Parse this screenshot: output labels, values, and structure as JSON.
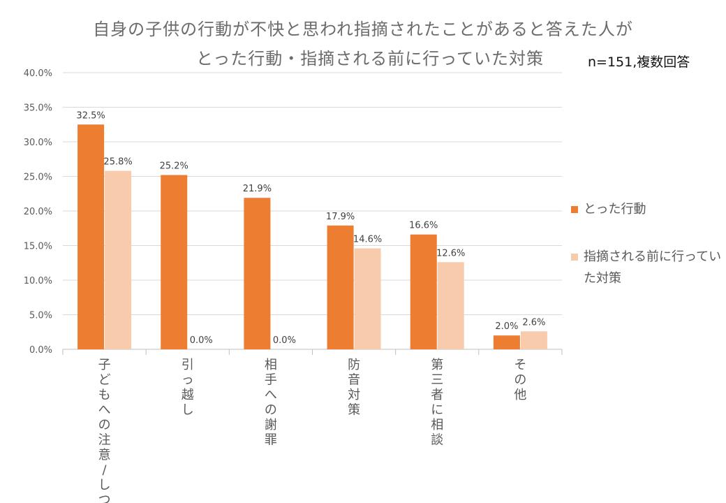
{
  "header": {
    "title_line1": "自身の子供の行動が不快と思われ指摘されたことがあると答えた人が",
    "title_line2": "とった行動・指摘される前に行っていた対策",
    "note": "n=151,複数回答"
  },
  "legend": {
    "items": [
      "とった行動",
      "指摘される前に行っていた対策"
    ]
  },
  "colors": {
    "series_0": "#ed7d31",
    "series_1": "#f8cbad",
    "grid": "#d9d9d9",
    "axis_text": "#595959",
    "label_text": "#404040"
  },
  "chart_data": {
    "type": "bar",
    "title": "自身の子供の行動が不快と思われ指摘されたことがあると答えた人が とった行動・指摘される前に行っていた対策",
    "categories": [
      "子どもへの注意/しつけ",
      "引っ越し",
      "相手への謝罪",
      "防音対策",
      "第三者に相談",
      "その他"
    ],
    "series": [
      {
        "name": "とった行動",
        "values": [
          32.5,
          25.2,
          21.9,
          17.9,
          16.6,
          2.0
        ],
        "labels": [
          "32.5%",
          "25.2%",
          "21.9%",
          "17.9%",
          "16.6%",
          "2.0%"
        ]
      },
      {
        "name": "指摘される前に行っていた対策",
        "values": [
          25.8,
          0.0,
          0.0,
          14.6,
          12.6,
          2.6
        ],
        "labels": [
          "25.8%",
          "0.0%",
          "0.0%",
          "14.6%",
          "12.6%",
          "2.6%"
        ]
      }
    ],
    "ylim": [
      0,
      40
    ],
    "yticks": [
      0,
      5,
      10,
      15,
      20,
      25,
      30,
      35,
      40
    ],
    "ytick_labels": [
      "0.0%",
      "5.0%",
      "10.0%",
      "15.0%",
      "20.0%",
      "25.0%",
      "30.0%",
      "35.0%",
      "40.0%"
    ],
    "xlabel": "",
    "ylabel": "",
    "grid": true,
    "legend_position": "right"
  }
}
